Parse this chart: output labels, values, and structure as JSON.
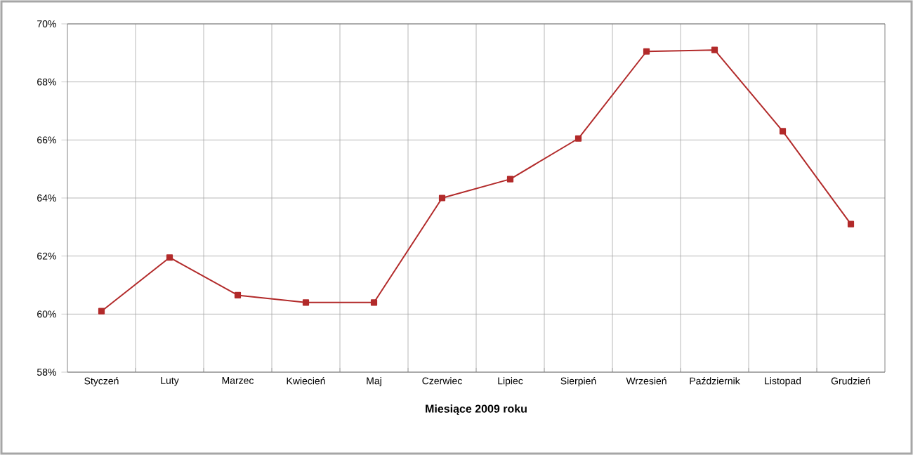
{
  "chart_data": {
    "type": "line",
    "xlabel": "Miesiące 2009  roku",
    "categories": [
      "Styczeń",
      "Luty",
      "Marzec",
      "Kwiecień",
      "Maj",
      "Czerwiec",
      "Lipiec",
      "Sierpień",
      "Wrzesień",
      "Październik",
      "Listopad",
      "Grudzień"
    ],
    "series": [
      {
        "color": "#b22a2a",
        "values": [
          60.1,
          61.95,
          60.65,
          60.4,
          60.4,
          64.0,
          64.65,
          66.05,
          69.05,
          69.1,
          66.3,
          63.1
        ]
      }
    ],
    "ylim": [
      58,
      70
    ],
    "yticks": [
      {
        "value": 58,
        "label": "58%"
      },
      {
        "value": 60,
        "label": "60%"
      },
      {
        "value": 62,
        "label": "62%"
      },
      {
        "value": 64,
        "label": "64%"
      },
      {
        "value": 66,
        "label": "66%"
      },
      {
        "value": 68,
        "label": "68%"
      },
      {
        "value": 70,
        "label": "70%"
      }
    ],
    "grid": true,
    "marker": "square",
    "line_style": "solid"
  }
}
